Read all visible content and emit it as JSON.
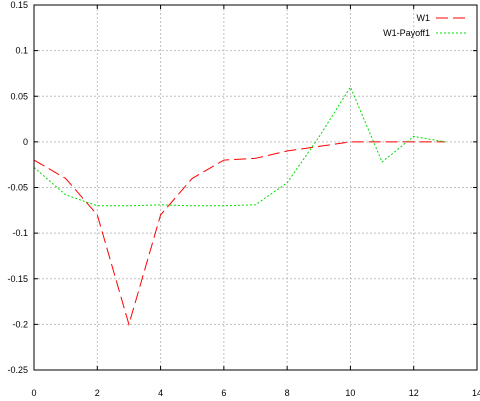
{
  "chart_data": {
    "type": "line",
    "title": "",
    "xlabel": "",
    "ylabel": "",
    "xlim": [
      0,
      14
    ],
    "ylim": [
      -0.25,
      0.15
    ],
    "x_ticks": [
      "0",
      "2",
      "4",
      "6",
      "8",
      "10",
      "12",
      "14"
    ],
    "y_ticks": [
      "0.15",
      "0.1",
      "0.05",
      "0",
      "-0.05",
      "-0.1",
      "-0.15",
      "-0.2",
      "-0.25"
    ],
    "grid": true,
    "legend_position": "top-right",
    "series": [
      {
        "name": "W1",
        "color": "#ff0000",
        "line_style": "long-dash",
        "x": [
          0,
          1,
          2,
          3,
          4,
          5,
          6,
          7,
          8,
          9,
          10,
          11,
          12,
          13
        ],
        "y": [
          -0.02,
          -0.04,
          -0.08,
          -0.2,
          -0.08,
          -0.04,
          -0.02,
          -0.018,
          -0.01,
          -0.005,
          0,
          0,
          0,
          0
        ]
      },
      {
        "name": "W1-Payoff1",
        "color": "#00dd00",
        "line_style": "dotted",
        "x": [
          0,
          1,
          2,
          3,
          4,
          5,
          6,
          7,
          8,
          9,
          10,
          11,
          12,
          13
        ],
        "y": [
          -0.028,
          -0.058,
          -0.07,
          -0.07,
          -0.069,
          -0.07,
          -0.07,
          -0.069,
          -0.045,
          0.005,
          0.06,
          -0.022,
          0.006,
          0
        ]
      }
    ]
  }
}
